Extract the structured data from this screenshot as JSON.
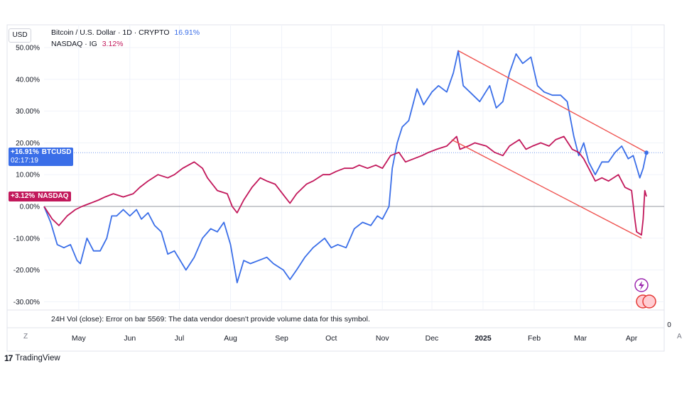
{
  "currency_button": "USD",
  "legend": {
    "btc": {
      "name": "Bitcoin / U.S. Dollar · 1D · CRYPTO",
      "value": "16.91%"
    },
    "ndx": {
      "name": "NASDAQ · IG",
      "value": "3.12%"
    }
  },
  "tags": {
    "btc_value": "+16.91%",
    "btc_symbol": "BTCUSD",
    "btc_countdown": "02:17:19",
    "ndx_value": "+3.12%",
    "ndx_symbol": "NASDAQ"
  },
  "volume_message": "24H Vol (close): Error on bar 5569: The data vendor doesn't provide volume data for this symbol.",
  "volume_axis_zero": "0",
  "nav": {
    "left": "Z",
    "right": "A"
  },
  "logo_text": "TradingView",
  "colors": {
    "btc": "#3a6ee8",
    "ndx": "#c2185b",
    "trend": "#ef5350",
    "grid": "#f0f3fa"
  },
  "chart_data": {
    "type": "line",
    "y_unit": "%",
    "ylim": [
      -30,
      50
    ],
    "y_ticks": [
      "50.00%",
      "40.00%",
      "30.00%",
      "20.00%",
      "10.00%",
      "0.00%",
      "-10.00%",
      "-20.00%",
      "-30.00%"
    ],
    "x_labels": [
      "May",
      "Jun",
      "Jul",
      "Aug",
      "Sep",
      "Oct",
      "Nov",
      "Dec",
      "2025",
      "Feb",
      "Mar",
      "Apr"
    ],
    "x_range": [
      "2024-04-10",
      "2025-04-10"
    ],
    "series": [
      {
        "name": "Bitcoin / U.S. Dollar · 1D · CRYPTO",
        "points": [
          [
            "2024-04-10",
            0
          ],
          [
            "2024-04-14",
            -5
          ],
          [
            "2024-04-18",
            -12
          ],
          [
            "2024-04-22",
            -13
          ],
          [
            "2024-04-26",
            -12
          ],
          [
            "2024-04-30",
            -17
          ],
          [
            "2024-05-02",
            -18
          ],
          [
            "2024-05-06",
            -10
          ],
          [
            "2024-05-10",
            -14
          ],
          [
            "2024-05-14",
            -14
          ],
          [
            "2024-05-18",
            -10
          ],
          [
            "2024-05-21",
            -3
          ],
          [
            "2024-05-24",
            -3
          ],
          [
            "2024-05-28",
            -1
          ],
          [
            "2024-06-01",
            -3
          ],
          [
            "2024-06-05",
            -1
          ],
          [
            "2024-06-08",
            -4
          ],
          [
            "2024-06-12",
            -2
          ],
          [
            "2024-06-16",
            -6
          ],
          [
            "2024-06-20",
            -8
          ],
          [
            "2024-06-24",
            -15
          ],
          [
            "2024-06-28",
            -14
          ],
          [
            "2024-07-05",
            -20
          ],
          [
            "2024-07-10",
            -16
          ],
          [
            "2024-07-15",
            -10
          ],
          [
            "2024-07-20",
            -7
          ],
          [
            "2024-07-24",
            -8
          ],
          [
            "2024-07-28",
            -5
          ],
          [
            "2024-08-01",
            -12
          ],
          [
            "2024-08-05",
            -24
          ],
          [
            "2024-08-09",
            -17
          ],
          [
            "2024-08-13",
            -18
          ],
          [
            "2024-08-18",
            -17
          ],
          [
            "2024-08-23",
            -16
          ],
          [
            "2024-08-27",
            -18
          ],
          [
            "2024-09-02",
            -20
          ],
          [
            "2024-09-06",
            -23
          ],
          [
            "2024-09-10",
            -20
          ],
          [
            "2024-09-15",
            -16
          ],
          [
            "2024-09-20",
            -13
          ],
          [
            "2024-09-27",
            -10
          ],
          [
            "2024-10-01",
            -13
          ],
          [
            "2024-10-05",
            -12
          ],
          [
            "2024-10-10",
            -13
          ],
          [
            "2024-10-15",
            -7
          ],
          [
            "2024-10-20",
            -5
          ],
          [
            "2024-10-25",
            -6
          ],
          [
            "2024-10-29",
            -3
          ],
          [
            "2024-11-01",
            -4
          ],
          [
            "2024-11-05",
            0
          ],
          [
            "2024-11-07",
            12
          ],
          [
            "2024-11-10",
            20
          ],
          [
            "2024-11-13",
            25
          ],
          [
            "2024-11-17",
            27
          ],
          [
            "2024-11-22",
            37
          ],
          [
            "2024-11-26",
            32
          ],
          [
            "2024-12-01",
            36
          ],
          [
            "2024-12-05",
            38
          ],
          [
            "2024-12-10",
            36
          ],
          [
            "2024-12-14",
            42
          ],
          [
            "2024-12-17",
            49
          ],
          [
            "2024-12-20",
            38
          ],
          [
            "2024-12-24",
            36
          ],
          [
            "2024-12-30",
            33
          ],
          [
            "2025-01-05",
            38
          ],
          [
            "2025-01-09",
            31
          ],
          [
            "2025-01-13",
            33
          ],
          [
            "2025-01-17",
            42
          ],
          [
            "2025-01-21",
            48
          ],
          [
            "2025-01-25",
            45
          ],
          [
            "2025-01-30",
            47
          ],
          [
            "2025-02-03",
            38
          ],
          [
            "2025-02-07",
            36
          ],
          [
            "2025-02-12",
            35
          ],
          [
            "2025-02-17",
            35
          ],
          [
            "2025-02-21",
            33
          ],
          [
            "2025-02-25",
            22
          ],
          [
            "2025-02-28",
            16
          ],
          [
            "2025-03-03",
            20
          ],
          [
            "2025-03-06",
            14
          ],
          [
            "2025-03-10",
            10
          ],
          [
            "2025-03-14",
            14
          ],
          [
            "2025-03-18",
            14
          ],
          [
            "2025-03-22",
            17
          ],
          [
            "2025-03-26",
            19
          ],
          [
            "2025-03-30",
            15
          ],
          [
            "2025-04-02",
            16
          ],
          [
            "2025-04-06",
            9
          ],
          [
            "2025-04-08",
            12
          ],
          [
            "2025-04-10",
            16.91
          ]
        ]
      },
      {
        "name": "NASDAQ · IG",
        "points": [
          [
            "2024-04-10",
            0
          ],
          [
            "2024-04-15",
            -4
          ],
          [
            "2024-04-19",
            -6
          ],
          [
            "2024-04-24",
            -3
          ],
          [
            "2024-04-29",
            -1
          ],
          [
            "2024-05-03",
            0
          ],
          [
            "2024-05-08",
            1
          ],
          [
            "2024-05-13",
            2
          ],
          [
            "2024-05-17",
            3
          ],
          [
            "2024-05-22",
            4
          ],
          [
            "2024-05-28",
            3
          ],
          [
            "2024-06-03",
            4
          ],
          [
            "2024-06-07",
            6
          ],
          [
            "2024-06-12",
            8
          ],
          [
            "2024-06-18",
            10
          ],
          [
            "2024-06-24",
            9
          ],
          [
            "2024-06-28",
            10
          ],
          [
            "2024-07-03",
            12
          ],
          [
            "2024-07-10",
            14
          ],
          [
            "2024-07-15",
            12
          ],
          [
            "2024-07-18",
            9
          ],
          [
            "2024-07-24",
            5
          ],
          [
            "2024-07-30",
            4
          ],
          [
            "2024-08-02",
            0
          ],
          [
            "2024-08-05",
            -2
          ],
          [
            "2024-08-09",
            2
          ],
          [
            "2024-08-14",
            6
          ],
          [
            "2024-08-19",
            9
          ],
          [
            "2024-08-23",
            8
          ],
          [
            "2024-08-28",
            7
          ],
          [
            "2024-09-03",
            3
          ],
          [
            "2024-09-06",
            1
          ],
          [
            "2024-09-10",
            4
          ],
          [
            "2024-09-16",
            7
          ],
          [
            "2024-09-20",
            8
          ],
          [
            "2024-09-26",
            10
          ],
          [
            "2024-09-30",
            10
          ],
          [
            "2024-10-04",
            11
          ],
          [
            "2024-10-09",
            12
          ],
          [
            "2024-10-14",
            12
          ],
          [
            "2024-10-18",
            13
          ],
          [
            "2024-10-23",
            12
          ],
          [
            "2024-10-28",
            13
          ],
          [
            "2024-11-01",
            12
          ],
          [
            "2024-11-06",
            16
          ],
          [
            "2024-11-11",
            17
          ],
          [
            "2024-11-15",
            14
          ],
          [
            "2024-11-20",
            15
          ],
          [
            "2024-11-25",
            16
          ],
          [
            "2024-11-29",
            17
          ],
          [
            "2024-12-04",
            18
          ],
          [
            "2024-12-10",
            19
          ],
          [
            "2024-12-16",
            22
          ],
          [
            "2024-12-18",
            18
          ],
          [
            "2024-12-23",
            19
          ],
          [
            "2024-12-27",
            20
          ],
          [
            "2025-01-03",
            19
          ],
          [
            "2025-01-08",
            17
          ],
          [
            "2025-01-13",
            16
          ],
          [
            "2025-01-17",
            19
          ],
          [
            "2025-01-23",
            21
          ],
          [
            "2025-01-27",
            18
          ],
          [
            "2025-01-31",
            19
          ],
          [
            "2025-02-05",
            20
          ],
          [
            "2025-02-10",
            19
          ],
          [
            "2025-02-14",
            21
          ],
          [
            "2025-02-19",
            22
          ],
          [
            "2025-02-24",
            18
          ],
          [
            "2025-02-28",
            17
          ],
          [
            "2025-03-03",
            15
          ],
          [
            "2025-03-06",
            12
          ],
          [
            "2025-03-10",
            8
          ],
          [
            "2025-03-14",
            9
          ],
          [
            "2025-03-18",
            8
          ],
          [
            "2025-03-24",
            10
          ],
          [
            "2025-03-28",
            6
          ],
          [
            "2025-04-01",
            5
          ],
          [
            "2025-04-03",
            -4
          ],
          [
            "2025-04-04",
            -8
          ],
          [
            "2025-04-07",
            -9
          ],
          [
            "2025-04-08",
            -4
          ],
          [
            "2025-04-09",
            5
          ],
          [
            "2025-04-10",
            3.12
          ]
        ]
      }
    ],
    "trendlines": [
      {
        "from": [
          "2024-12-17",
          49
        ],
        "to": [
          "2025-04-10",
          17
        ]
      },
      {
        "from": [
          "2024-12-13",
          21
        ],
        "to": [
          "2025-04-07",
          -10
        ]
      }
    ],
    "reference_line_y": 16.91,
    "zero_line_y": 0
  }
}
